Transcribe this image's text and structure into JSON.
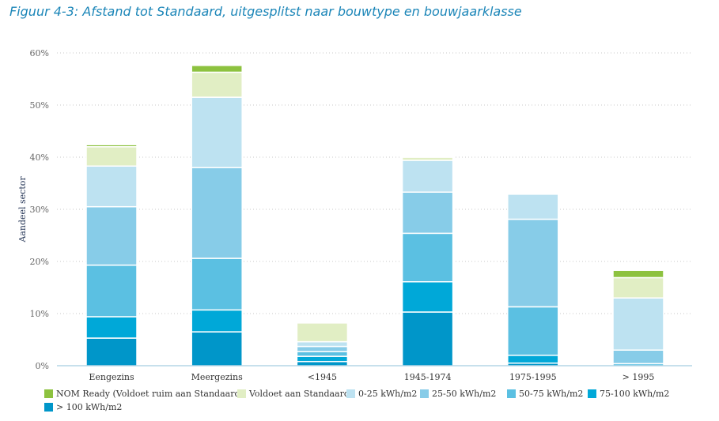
{
  "title": "Figuur 4-3: Afstand tot Standaard, uitgesplitst naar bouwtype en bouwjaarklasse",
  "chart_data": {
    "type": "bar",
    "stacked": true,
    "ylabel": "Aandeel sector",
    "xlabel": "",
    "ylim": [
      0,
      60
    ],
    "yticks": [
      "0%",
      "10%",
      "20%",
      "30%",
      "40%",
      "50%",
      "60%"
    ],
    "grid": "horizontal dotted",
    "legend_position": "bottom",
    "categories": [
      "Eengezins",
      "Meergezins",
      "<1945",
      "1945-1974",
      "1975-1995",
      "> 1995"
    ],
    "series": [
      {
        "name": "> 100 kWh/m2",
        "color": "#0096c9",
        "values": [
          5.3,
          6.5,
          0.8,
          10.3,
          0.5,
          0.0
        ]
      },
      {
        "name": "75-100 kWh/m2",
        "color": "#00a8d8",
        "values": [
          4.1,
          4.2,
          1.0,
          5.8,
          1.5,
          0.0
        ]
      },
      {
        "name": "50-75 kWh/m2",
        "color": "#5bc0e2",
        "values": [
          9.9,
          9.9,
          0.9,
          9.3,
          9.3,
          0.4
        ]
      },
      {
        "name": "25-50 kWh/m2",
        "color": "#87cce8",
        "values": [
          11.2,
          17.4,
          1.0,
          7.9,
          16.8,
          2.6
        ]
      },
      {
        "name": "0-25 kWh/m2",
        "color": "#bde2f1",
        "values": [
          7.8,
          13.5,
          0.9,
          6.1,
          4.8,
          10.0
        ]
      },
      {
        "name": "Voldoet aan Standaard",
        "color": "#e1eec4",
        "values": [
          3.7,
          4.8,
          3.6,
          0.6,
          0.0,
          3.9
        ]
      },
      {
        "name": "NOM Ready (Voldoet ruim aan Standaard)",
        "color": "#8dc23f",
        "values": [
          0.4,
          1.3,
          0.0,
          0.2,
          0.0,
          1.4
        ]
      }
    ],
    "legend_order": [
      "NOM Ready (Voldoet ruim aan Standaard)",
      "Voldoet aan Standaard",
      "0-25 kWh/m2",
      "25-50 kWh/m2",
      "50-75 kWh/m2",
      "75-100 kWh/m2",
      "> 100 kWh/m2"
    ]
  }
}
